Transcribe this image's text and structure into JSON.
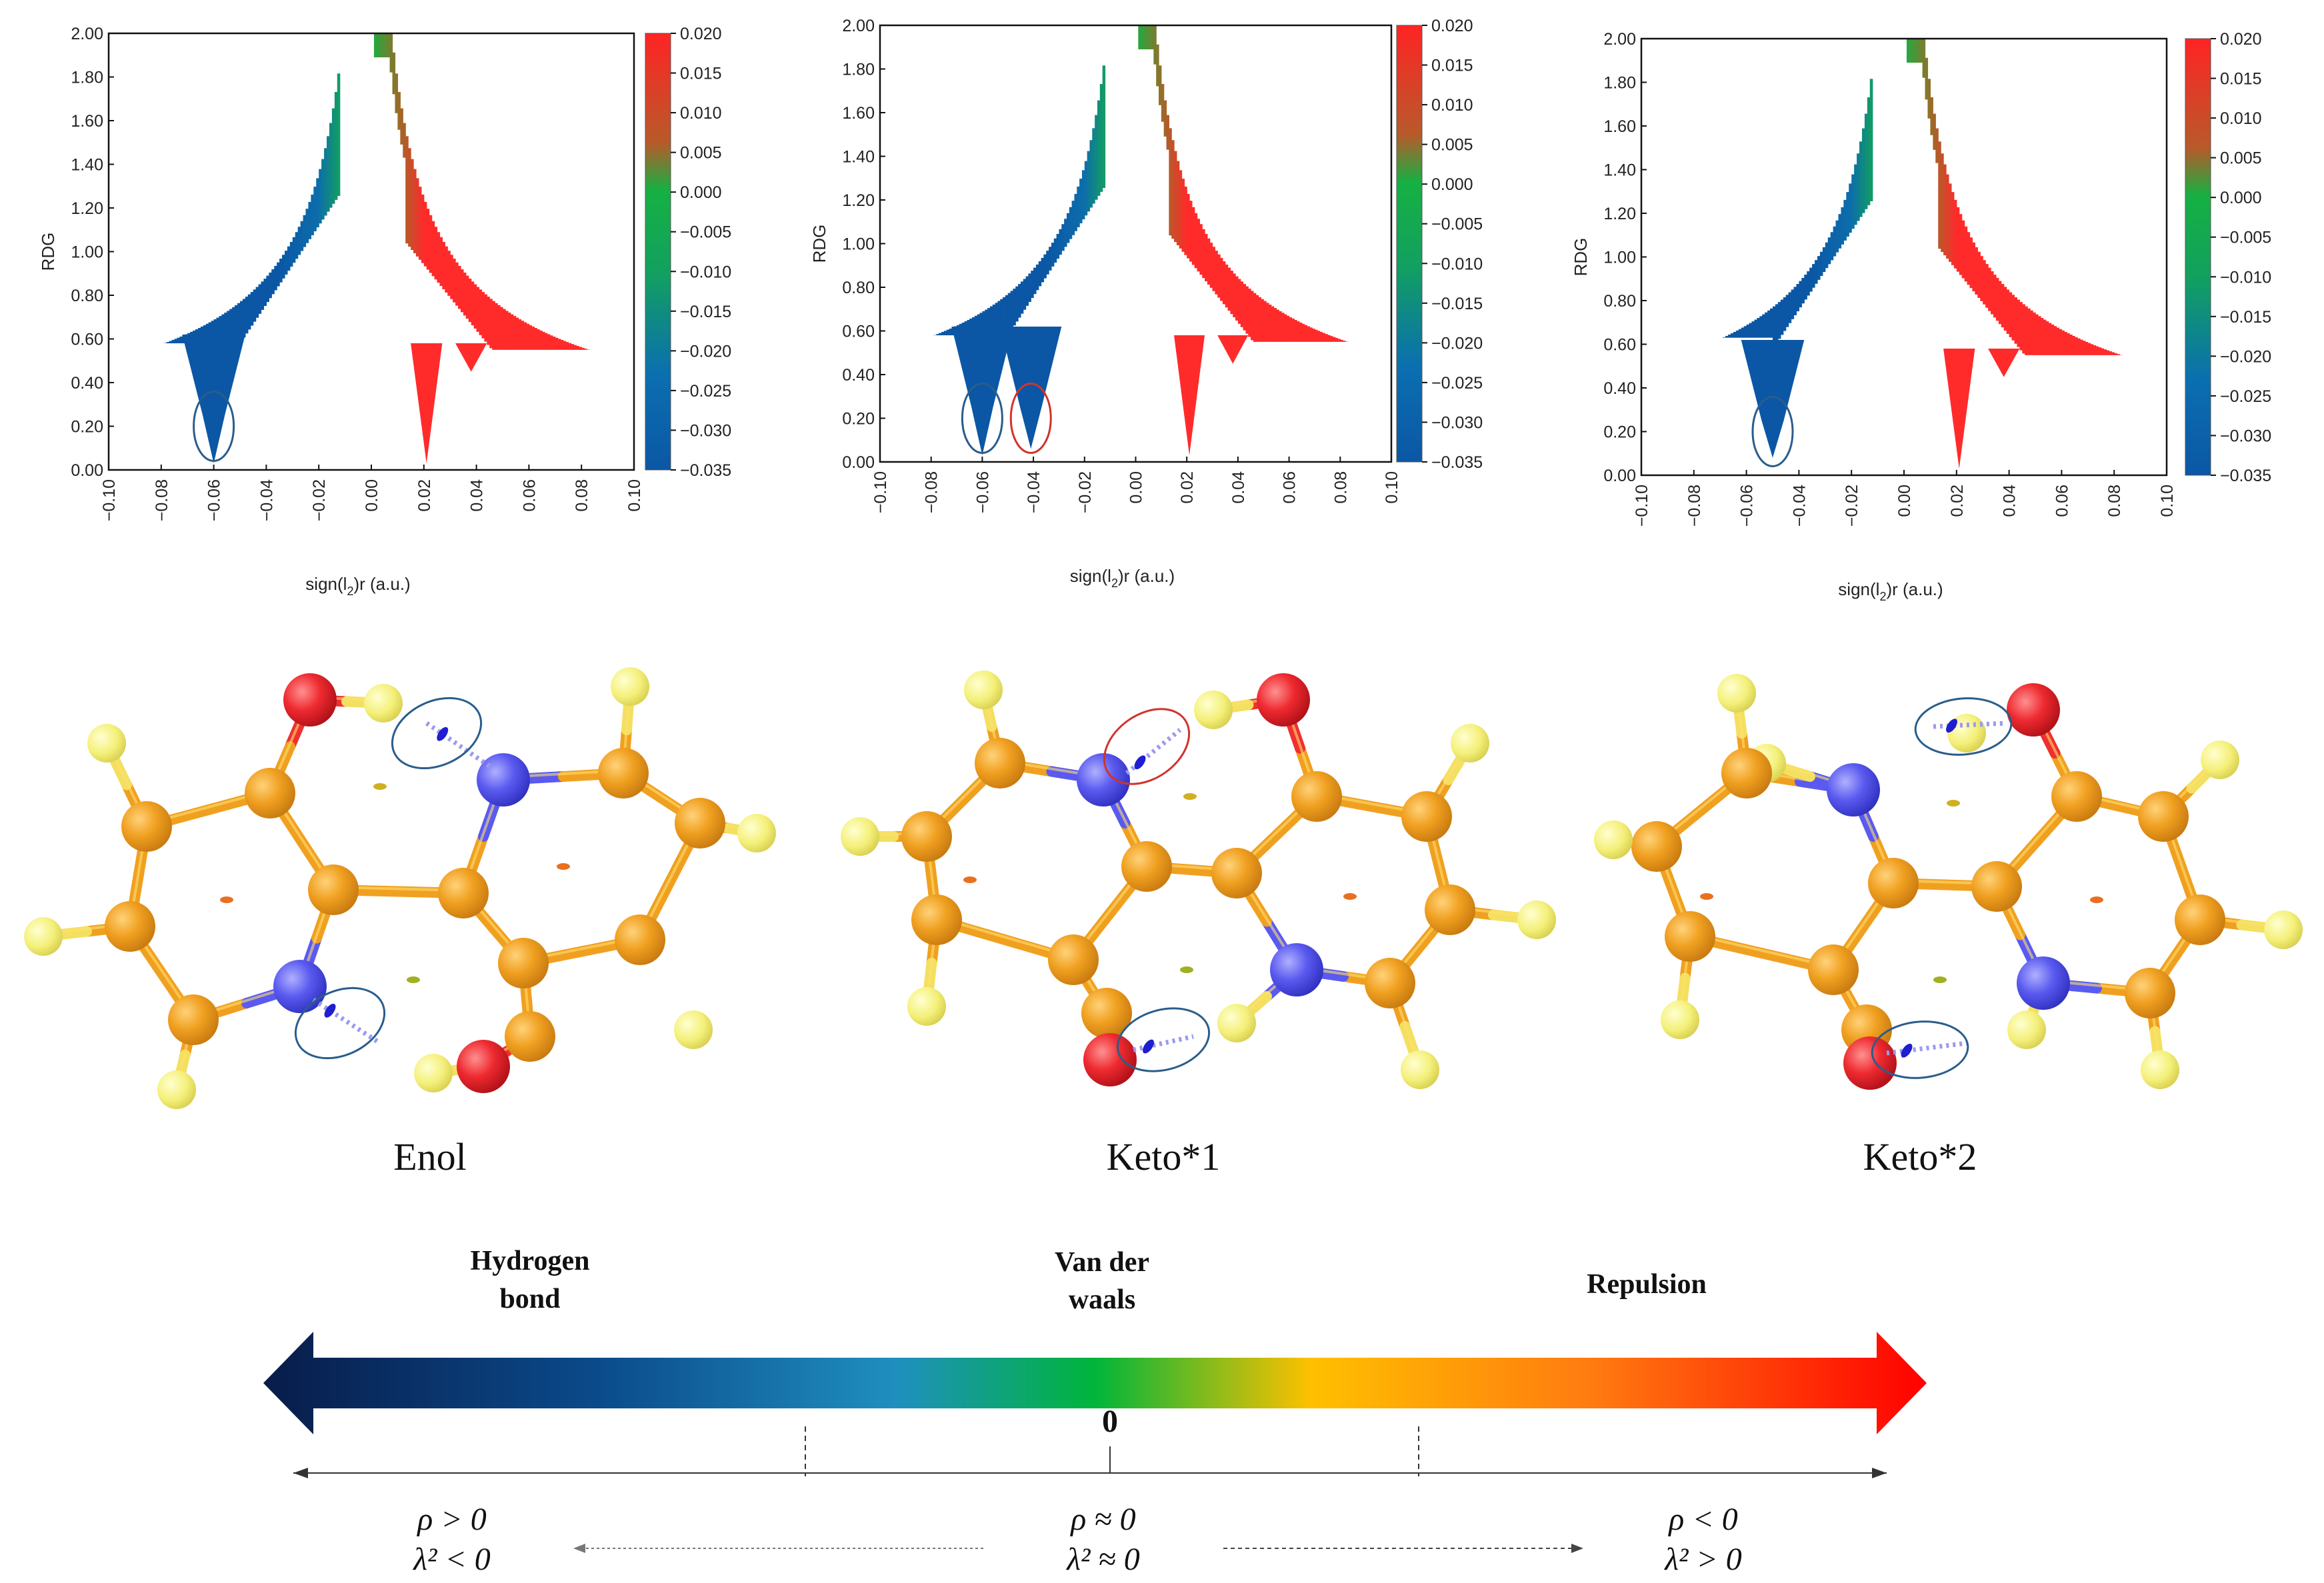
{
  "chart_data": [
    {
      "type": "scatter",
      "panel": "Enol",
      "xlabel": "sign(l",
      "xlabel_sub": "2",
      "xlabel_tail": ")r (a.u.)",
      "ylabel": "RDG",
      "xlim": [
        -0.1,
        0.1
      ],
      "ylim": [
        0.0,
        2.0
      ],
      "xticks": [
        "-0.10",
        "-0.08",
        "-0.06",
        "-0.04",
        "-0.02",
        "0.00",
        "0.02",
        "0.04",
        "0.06",
        "0.08",
        "0.10"
      ],
      "yticks": [
        "0.00",
        "0.20",
        "0.40",
        "0.60",
        "0.80",
        "1.00",
        "1.20",
        "1.40",
        "1.60",
        "1.80",
        "2.00"
      ],
      "colorbar": {
        "ticks": [
          "0.020",
          "0.015",
          "0.010",
          "0.005",
          "0.000",
          "−0.005",
          "−0.010",
          "−0.015",
          "−0.020",
          "−0.025",
          "−0.030",
          "−0.035"
        ],
        "range": [
          -0.035,
          0.02
        ]
      },
      "spikes": [
        {
          "x": -0.06,
          "min_rdg": 0.03,
          "highlight": "blue"
        }
      ],
      "left_edge_rdg": [
        0.97,
        0.58
      ],
      "right_edge_rdg": [
        0.85,
        0.55
      ]
    },
    {
      "type": "scatter",
      "panel": "Keto*1",
      "xlabel": "sign(l",
      "xlabel_sub": "2",
      "xlabel_tail": ")r (a.u.)",
      "ylabel": "RDG",
      "xlim": [
        -0.1,
        0.1
      ],
      "ylim": [
        0.0,
        2.0
      ],
      "xticks": [
        "-0.10",
        "-0.08",
        "-0.06",
        "-0.04",
        "-0.02",
        "0.00",
        "0.02",
        "0.04",
        "0.06",
        "0.08",
        "0.10"
      ],
      "yticks": [
        "0.00",
        "0.20",
        "0.40",
        "0.60",
        "0.80",
        "1.00",
        "1.20",
        "1.40",
        "1.60",
        "1.80",
        "2.00"
      ],
      "colorbar": {
        "ticks": [
          "0.020",
          "0.015",
          "0.010",
          "0.005",
          "0.000",
          "−0.005",
          "−0.010",
          "−0.015",
          "−0.020",
          "−0.025",
          "−0.030",
          "−0.035"
        ],
        "range": [
          -0.035,
          0.02
        ]
      },
      "spikes": [
        {
          "x": -0.06,
          "min_rdg": 0.03,
          "highlight": "blue"
        },
        {
          "x": -0.041,
          "min_rdg": 0.06,
          "highlight": "red"
        }
      ],
      "left_edge_rdg": [
        0.97,
        0.58
      ],
      "right_edge_rdg": [
        0.85,
        0.55
      ]
    },
    {
      "type": "scatter",
      "panel": "Keto*2",
      "xlabel": "sign(l",
      "xlabel_sub": "2",
      "xlabel_tail": ")r (a.u.)",
      "ylabel": "RDG",
      "xlim": [
        -0.1,
        0.1
      ],
      "ylim": [
        0.0,
        2.0
      ],
      "xticks": [
        "-0.10",
        "-0.08",
        "-0.06",
        "-0.04",
        "-0.02",
        "0.00",
        "0.02",
        "0.04",
        "0.06",
        "0.08",
        "0.10"
      ],
      "yticks": [
        "0.00",
        "0.20",
        "0.40",
        "0.60",
        "0.80",
        "1.00",
        "1.20",
        "1.40",
        "1.60",
        "1.80",
        "2.00"
      ],
      "colorbar": {
        "ticks": [
          "0.020",
          "0.015",
          "0.010",
          "0.005",
          "0.000",
          "−0.005",
          "−0.010",
          "−0.015",
          "−0.020",
          "−0.025",
          "−0.030",
          "−0.035"
        ],
        "range": [
          -0.035,
          0.02
        ]
      },
      "spikes": [
        {
          "x": -0.05,
          "min_rdg": 0.08,
          "highlight": "blue"
        }
      ],
      "left_edge_rdg": [
        1.0,
        0.63
      ],
      "right_edge_rdg": [
        0.85,
        0.55
      ]
    }
  ],
  "molecules": [
    {
      "name": "Enol"
    },
    {
      "name": "Keto*1"
    },
    {
      "name": "Keto*2"
    }
  ],
  "scale": {
    "hydrogen_bond": [
      "Hydrogen",
      "bond"
    ],
    "van_der_waals": [
      "Van der",
      "waals"
    ],
    "repulsion": "Repulsion",
    "zero": "0",
    "left_cond": [
      "ρ > 0",
      "λ² < 0"
    ],
    "mid_cond": [
      "ρ ≈ 0",
      "λ² ≈ 0"
    ],
    "right_cond": [
      "ρ < 0",
      "λ² > 0"
    ]
  },
  "colors": {
    "blue": "#0b57a5",
    "green": "#16b043",
    "red": "#ff2b2b",
    "carbon": "#f0a020",
    "hydrogen": "#f4f07a",
    "nitrogen": "#4a4ae8",
    "oxygen": "#e8202a",
    "ellipse_blue": "#2a5d8c",
    "ellipse_red": "#d0342c"
  }
}
